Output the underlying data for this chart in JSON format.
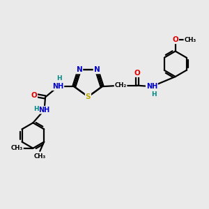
{
  "bg_color": "#eaeaea",
  "atom_colors": {
    "N": "#0000cc",
    "O": "#dd0000",
    "S": "#bbaa00",
    "C": "#000000",
    "H": "#008888"
  },
  "bond_color": "#000000",
  "bond_width": 1.6,
  "fig_size": [
    3.0,
    3.0
  ],
  "dpi": 100,
  "xlim": [
    0,
    10
  ],
  "ylim": [
    0,
    10
  ]
}
